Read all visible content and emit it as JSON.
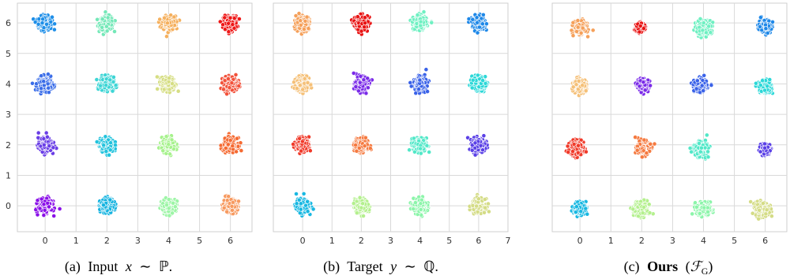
{
  "chart_data": [
    {
      "type": "scatter",
      "caption": {
        "label": "(a)",
        "text": "Input",
        "var": "x",
        "rel": "∼",
        "dist": "ℙ",
        "end": "."
      },
      "xlim": [
        -0.9,
        6.7
      ],
      "ylim": [
        -0.85,
        6.65
      ],
      "xticks": [
        0,
        1,
        2,
        3,
        4,
        5,
        6
      ],
      "yticks": [
        0,
        1,
        2,
        3,
        4,
        5,
        6
      ],
      "show_y_tick_labels": true,
      "grid": true,
      "clusters": [
        {
          "x": 0,
          "y": 6,
          "color": "#1f8fe8",
          "spread": 0.2
        },
        {
          "x": 2,
          "y": 6,
          "color": "#74e8b8",
          "spread": 0.2
        },
        {
          "x": 4,
          "y": 6,
          "color": "#f5b05e",
          "spread": 0.2
        },
        {
          "x": 6,
          "y": 6,
          "color": "#ee1717",
          "spread": 0.2
        },
        {
          "x": 0,
          "y": 4,
          "color": "#3a6de8",
          "spread": 0.2
        },
        {
          "x": 2,
          "y": 4,
          "color": "#3dd5d5",
          "spread": 0.2
        },
        {
          "x": 4,
          "y": 4,
          "color": "#d6de84",
          "spread": 0.2
        },
        {
          "x": 6,
          "y": 4,
          "color": "#f2523b",
          "spread": 0.2
        },
        {
          "x": 0,
          "y": 2,
          "color": "#6a3ee6",
          "spread": 0.2
        },
        {
          "x": 2,
          "y": 2,
          "color": "#22c3dd",
          "spread": 0.2
        },
        {
          "x": 4,
          "y": 2,
          "color": "#a6f28c",
          "spread": 0.2
        },
        {
          "x": 6,
          "y": 2,
          "color": "#f56a32",
          "spread": 0.2
        },
        {
          "x": 0,
          "y": 0,
          "color": "#8a10e8",
          "spread": 0.2
        },
        {
          "x": 2,
          "y": 0,
          "color": "#14b3e0",
          "spread": 0.2
        },
        {
          "x": 4,
          "y": 0,
          "color": "#9df5a6",
          "spread": 0.2
        },
        {
          "x": 6,
          "y": 0,
          "color": "#f79a60",
          "spread": 0.2
        }
      ]
    },
    {
      "type": "scatter",
      "caption": {
        "label": "(b)",
        "text": "Target",
        "var": "y",
        "rel": "∼",
        "dist": "ℚ",
        "end": "."
      },
      "xlim": [
        -1.0,
        7.0
      ],
      "ylim": [
        -0.85,
        6.65
      ],
      "xticks": [
        0,
        1,
        2,
        3,
        4,
        5,
        6,
        7
      ],
      "yticks": [
        0,
        1,
        2,
        3,
        4,
        5,
        6
      ],
      "show_y_tick_labels": false,
      "grid": true,
      "clusters": [
        {
          "x": 0,
          "y": 6,
          "color": "#f5a05a",
          "spread": 0.2
        },
        {
          "x": 2,
          "y": 6,
          "color": "#e81212",
          "spread": 0.2
        },
        {
          "x": 4,
          "y": 6,
          "color": "#6ff0c2",
          "spread": 0.2
        },
        {
          "x": 6,
          "y": 6,
          "color": "#1e88e8",
          "spread": 0.2
        },
        {
          "x": 0,
          "y": 4,
          "color": "#f5c078",
          "spread": 0.2
        },
        {
          "x": 2,
          "y": 4,
          "color": "#7a2ae8",
          "spread": 0.2
        },
        {
          "x": 4,
          "y": 4,
          "color": "#3a62e8",
          "spread": 0.2
        },
        {
          "x": 6,
          "y": 4,
          "color": "#2cd8d8",
          "spread": 0.2
        },
        {
          "x": 0,
          "y": 2,
          "color": "#f03a2a",
          "spread": 0.2
        },
        {
          "x": 2,
          "y": 2,
          "color": "#f57a40",
          "spread": 0.2
        },
        {
          "x": 4,
          "y": 2,
          "color": "#52e8c8",
          "spread": 0.2
        },
        {
          "x": 6,
          "y": 2,
          "color": "#5a40e6",
          "spread": 0.2
        },
        {
          "x": 0,
          "y": 0,
          "color": "#18b8e2",
          "spread": 0.2
        },
        {
          "x": 2,
          "y": 0,
          "color": "#b4f08e",
          "spread": 0.2
        },
        {
          "x": 4,
          "y": 0,
          "color": "#8cf5aa",
          "spread": 0.2
        },
        {
          "x": 6,
          "y": 0,
          "color": "#d4dc86",
          "spread": 0.2
        }
      ]
    },
    {
      "type": "scatter",
      "caption": {
        "label": "(c)",
        "bold": "Ours",
        "paren_open": "(",
        "map": "ℱ",
        "sub": "G",
        "paren_close": ")"
      },
      "xlim": [
        -0.9,
        6.7
      ],
      "ylim": [
        -0.85,
        6.65
      ],
      "xticks": [
        0,
        1,
        2,
        3,
        4,
        5,
        6
      ],
      "yticks": [
        0,
        1,
        2,
        3,
        4,
        5,
        6
      ],
      "show_y_tick_labels": false,
      "grid": true,
      "clusters": [
        {
          "x": 0,
          "y": 5.85,
          "color": "#f5a05a",
          "spread": 0.18
        },
        {
          "x": 1.95,
          "y": 5.85,
          "color": "#e81212",
          "spread": 0.12
        },
        {
          "x": 4.0,
          "y": 5.85,
          "color": "#6ff0c2",
          "spread": 0.22
        },
        {
          "x": 6.0,
          "y": 5.9,
          "color": "#1e88e8",
          "spread": 0.18
        },
        {
          "x": 0,
          "y": 3.95,
          "color": "#f5c078",
          "spread": 0.18
        },
        {
          "x": 2.05,
          "y": 3.95,
          "color": "#7a2ae8",
          "spread": 0.15
        },
        {
          "x": 3.9,
          "y": 3.95,
          "color": "#3a62e8",
          "spread": 0.18
        },
        {
          "x": 6.0,
          "y": 3.9,
          "color": "#2cd8d8",
          "spread": 0.18
        },
        {
          "x": -0.1,
          "y": 1.9,
          "color": "#f03a2a",
          "spread": 0.2
        },
        {
          "x": 2.05,
          "y": 1.9,
          "color": "#f57a40",
          "spread": 0.2
        },
        {
          "x": 3.9,
          "y": 1.85,
          "color": "#52e8c8",
          "spread": 0.2
        },
        {
          "x": 6.0,
          "y": 1.85,
          "color": "#5a40e6",
          "spread": 0.13
        },
        {
          "x": 0,
          "y": -0.1,
          "color": "#18b8e2",
          "spread": 0.18
        },
        {
          "x": 2.0,
          "y": -0.1,
          "color": "#b4f08e",
          "spread": 0.22
        },
        {
          "x": 4.0,
          "y": -0.1,
          "color": "#8cf5aa",
          "spread": 0.2
        },
        {
          "x": 5.9,
          "y": -0.1,
          "color": "#d4dc86",
          "spread": 0.2
        }
      ]
    }
  ]
}
